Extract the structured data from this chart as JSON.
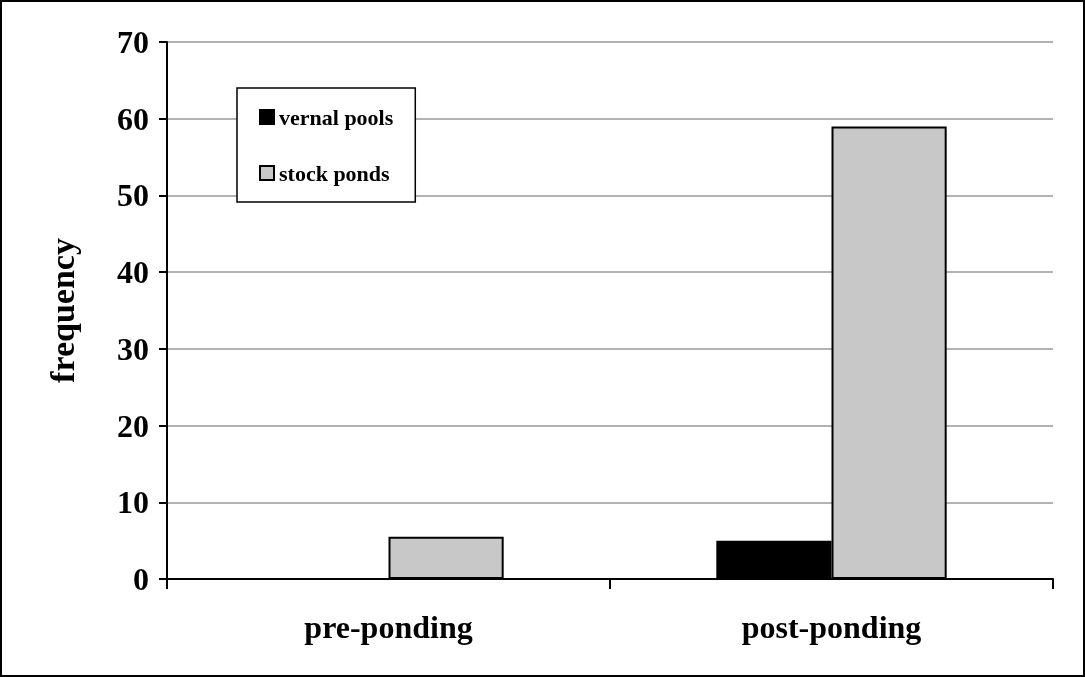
{
  "chart_data": {
    "type": "bar",
    "ylabel": "frequency",
    "categories": [
      "pre-ponding",
      "post-ponding"
    ],
    "series": [
      {
        "name": "vernal pools",
        "color": "#000000",
        "values": [
          0,
          5
        ]
      },
      {
        "name": "stock ponds",
        "color": "#c8c8c8",
        "values": [
          5.5,
          59
        ]
      }
    ],
    "ylim": [
      0,
      70
    ],
    "yticks": [
      0,
      10,
      20,
      30,
      40,
      50,
      60,
      70
    ],
    "grid": "y",
    "legend": "top left"
  }
}
